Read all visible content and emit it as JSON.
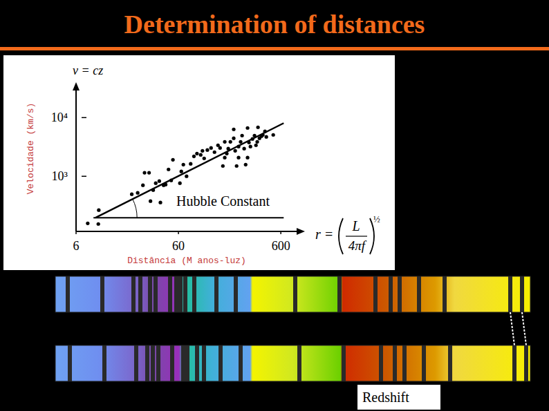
{
  "slide": {
    "title": "Determination of distances",
    "redshift_label": "Redshift"
  },
  "chart_data": {
    "type": "scatter",
    "title": "v = cz",
    "x_label": "Distância (M anos-luz)",
    "y_label": "Velocidade (km/s)",
    "annotations": [
      "Hubble Constant"
    ],
    "formula": {
      "lhs": "r =",
      "numerator": "L",
      "denominator": "4πf",
      "exponent": "½"
    },
    "log": true,
    "xlim": [
      6,
      1000
    ],
    "ylim": [
      115,
      38000
    ],
    "xticks": [
      6,
      60,
      600
    ],
    "yticks": [
      {
        "value": 1000,
        "label": "10³"
      },
      {
        "value": 10000,
        "label": "10⁴"
      }
    ],
    "series": [
      {
        "type": "scatter",
        "color": "#000000",
        "marker": "circle",
        "x": [
          7.8,
          9.9,
          10,
          21,
          24,
          28,
          31,
          27,
          32,
          34,
          36,
          39,
          40,
          43,
          45,
          48,
          51,
          53,
          62,
          64,
          67,
          72,
          79,
          85,
          91,
          99,
          103,
          107,
          115,
          125,
          135,
          146,
          153,
          163,
          170,
          170,
          178,
          184,
          193,
          208,
          215,
          222,
          232,
          232,
          243,
          251,
          263,
          284,
          284,
          293,
          303,
          317,
          332,
          343,
          353,
          359,
          371,
          388,
          400,
          420,
          433,
          506,
          208,
          272
        ],
        "values": [
          158,
          154,
          265,
          494,
          522,
          1150,
          1150,
          703,
          377,
          582,
          763,
          827,
          357,
          703,
          722,
          1310,
          850,
          1910,
          763,
          1210,
          1580,
          1000,
          1630,
          2190,
          2440,
          2320,
          2720,
          2020,
          2800,
          3040,
          2580,
          3380,
          3040,
          1500,
          2080,
          3870,
          2440,
          2960,
          3870,
          6310,
          2720,
          1500,
          3210,
          2080,
          3870,
          4940,
          2960,
          2080,
          6660,
          3770,
          3210,
          4320,
          4940,
          3380,
          3870,
          6840,
          4440,
          4810,
          5080,
          5820,
          4690,
          5080,
          4440,
          1580
        ]
      },
      {
        "type": "line",
        "color": "#000000",
        "line_style": "solid",
        "x": [
          9.3,
          640
        ],
        "values": [
          197,
          8050
        ]
      }
    ]
  }
}
